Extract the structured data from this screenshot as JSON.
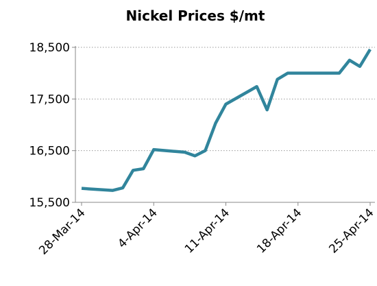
{
  "chart_data": {
    "type": "line",
    "title": "Nickel Prices $/mt",
    "x": [
      "2014-03-28",
      "2014-03-31",
      "2014-04-01",
      "2014-04-02",
      "2014-04-03",
      "2014-04-04",
      "2014-04-07",
      "2014-04-08",
      "2014-04-09",
      "2014-04-10",
      "2014-04-11",
      "2014-04-14",
      "2014-04-15",
      "2014-04-16",
      "2014-04-17",
      "2014-04-22",
      "2014-04-23",
      "2014-04-24",
      "2014-04-25"
    ],
    "series": [
      {
        "name": "Nickel",
        "color": "#31859c",
        "values": [
          15770,
          15730,
          15780,
          16120,
          16150,
          16520,
          16470,
          16400,
          16500,
          17030,
          17400,
          17740,
          17290,
          17880,
          18000,
          18000,
          18250,
          18130,
          18460
        ]
      }
    ],
    "xlim": [
      "2014-03-28",
      "2014-04-25"
    ],
    "xticks": [
      {
        "value": "2014-03-28",
        "label": "28-Mar-14"
      },
      {
        "value": "2014-04-04",
        "label": "4-Apr-14"
      },
      {
        "value": "2014-04-11",
        "label": "11-Apr-14"
      },
      {
        "value": "2014-04-18",
        "label": "18-Apr-14"
      },
      {
        "value": "2014-04-25",
        "label": "25-Apr-14"
      }
    ],
    "ylim": [
      15500,
      18500
    ],
    "yticks": [
      {
        "value": 15500,
        "label": "15,500"
      },
      {
        "value": 16500,
        "label": "16,500"
      },
      {
        "value": 17500,
        "label": "17,500"
      },
      {
        "value": 18500,
        "label": "18,500"
      }
    ],
    "grid": true
  }
}
